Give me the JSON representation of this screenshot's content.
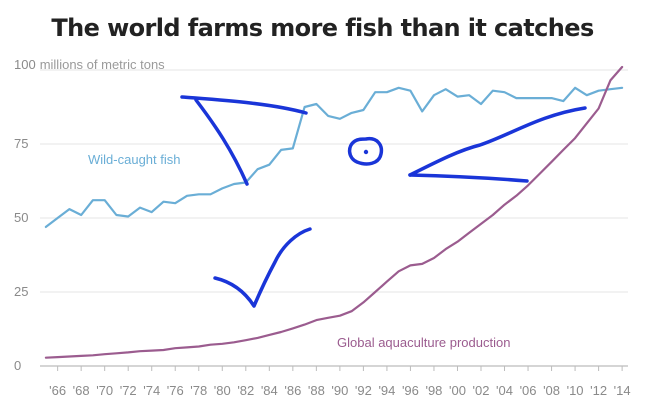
{
  "title": "The world farms more fish than it catches",
  "chart_data": {
    "type": "line",
    "title": "The world farms more fish than it catches",
    "ylabel": "millions of metric tons",
    "ylim": [
      0,
      100
    ],
    "yticks": [
      0,
      25,
      50,
      75,
      100
    ],
    "xlim": [
      1964.5,
      2014.5
    ],
    "xtick_labels": [
      "'66",
      "'68",
      "'70",
      "'72",
      "'74",
      "'76",
      "'78",
      "'80",
      "'82",
      "'84",
      "'86",
      "'88",
      "'90",
      "'92",
      "'94",
      "'96",
      "'98",
      "'00",
      "'02",
      "'04",
      "'06",
      "'08",
      "'10",
      "'12",
      "'14"
    ],
    "grid": "horizontal",
    "legend": "inline labels",
    "series": [
      {
        "name": "Wild-caught fish",
        "color": "#6aaed6",
        "x": [
          1965,
          1966,
          1967,
          1968,
          1969,
          1970,
          1971,
          1972,
          1973,
          1974,
          1975,
          1976,
          1977,
          1978,
          1979,
          1980,
          1981,
          1982,
          1983,
          1984,
          1985,
          1986,
          1987,
          1988,
          1989,
          1990,
          1991,
          1992,
          1993,
          1994,
          1995,
          1996,
          1997,
          1998,
          1999,
          2000,
          2001,
          2002,
          2003,
          2004,
          2005,
          2006,
          2007,
          2008,
          2009,
          2010,
          2011,
          2012,
          2013,
          2014
        ],
        "values": [
          47,
          50,
          53,
          51,
          56,
          56,
          51,
          50.5,
          53.5,
          52,
          55.5,
          55,
          57.5,
          58,
          58,
          60,
          61.5,
          62,
          66.5,
          68,
          73,
          73.5,
          87.5,
          88.5,
          84.5,
          83.5,
          85.5,
          86.5,
          92.5,
          92.5,
          94,
          93,
          86,
          91.5,
          93.5,
          91,
          91.5,
          88.5,
          93,
          92.5,
          90.5,
          90.5,
          90.5,
          90.5,
          89.5,
          94,
          91.5,
          93,
          93.5,
          94
        ]
      },
      {
        "name": "Global aquaculture production",
        "color": "#9b5c8f",
        "x": [
          1965,
          1966,
          1967,
          1968,
          1969,
          1970,
          1971,
          1972,
          1973,
          1974,
          1975,
          1976,
          1977,
          1978,
          1979,
          1980,
          1981,
          1982,
          1983,
          1984,
          1985,
          1986,
          1987,
          1988,
          1989,
          1990,
          1991,
          1992,
          1993,
          1994,
          1995,
          1996,
          1997,
          1998,
          1999,
          2000,
          2001,
          2002,
          2003,
          2004,
          2005,
          2006,
          2007,
          2008,
          2009,
          2010,
          2011,
          2012,
          2013,
          2014
        ],
        "values": [
          2.8,
          3,
          3.2,
          3.4,
          3.6,
          4,
          4.3,
          4.6,
          5,
          5.2,
          5.4,
          6,
          6.3,
          6.6,
          7.2,
          7.5,
          8,
          8.7,
          9.5,
          10.5,
          11.5,
          12.7,
          14,
          15.5,
          16.3,
          17,
          18.5,
          21.5,
          25,
          28.5,
          32,
          34,
          34.5,
          36.5,
          39.5,
          42,
          45,
          48,
          51,
          54.5,
          57.5,
          61,
          65,
          69,
          73,
          77,
          82,
          87,
          96.5,
          101
        ]
      }
    ]
  },
  "annotations": [
    {
      "text": "Wild-caught fish",
      "color": "#6aaed6"
    },
    {
      "text": "Global aquaculture production",
      "color": "#9b5c8f"
    }
  ],
  "drawing": {
    "color": "#1a35d8",
    "description": "hand-drawn fish doodle"
  }
}
